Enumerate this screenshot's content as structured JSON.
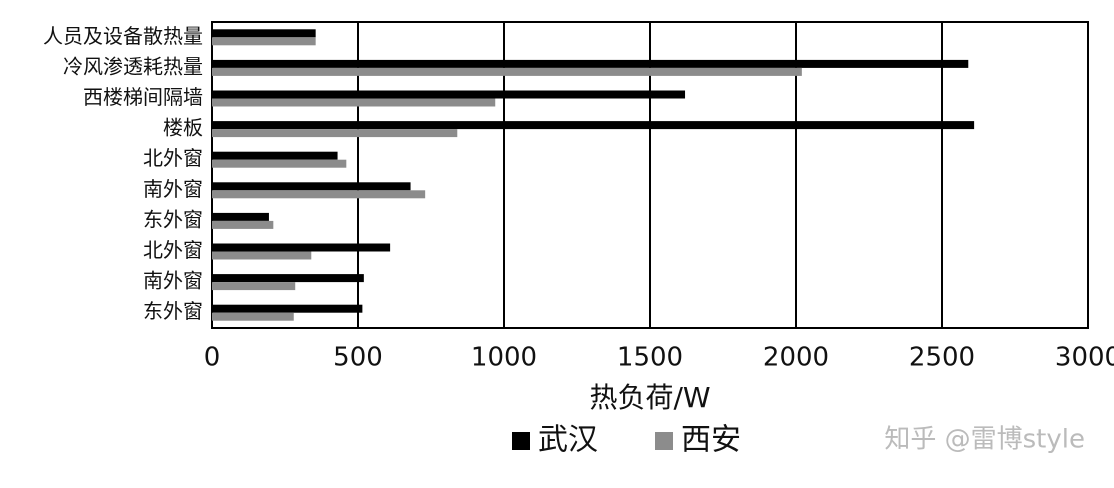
{
  "chart_data": {
    "type": "hbar",
    "categories": [
      "人员及设备散热量",
      "冷风渗透耗热量",
      "西楼梯间隔墙",
      "楼板",
      "北外窗",
      "南外窗",
      "东外窗",
      "北外窗",
      "南外窗",
      "东外窗"
    ],
    "series": [
      {
        "name": "武汉",
        "color": "#000000",
        "values": [
          355,
          2590,
          1620,
          2610,
          430,
          680,
          195,
          610,
          520,
          515
        ]
      },
      {
        "name": "西安",
        "color": "#8c8c8c",
        "values": [
          355,
          2020,
          970,
          840,
          460,
          730,
          210,
          340,
          285,
          280
        ]
      }
    ],
    "xlabel": "热负荷/W",
    "xlim": [
      0,
      3000
    ],
    "xticks": [
      0,
      500,
      1000,
      1500,
      2000,
      2500,
      3000
    ],
    "grid": true,
    "legend": "bottom",
    "watermark": "知乎 @雷博style"
  }
}
